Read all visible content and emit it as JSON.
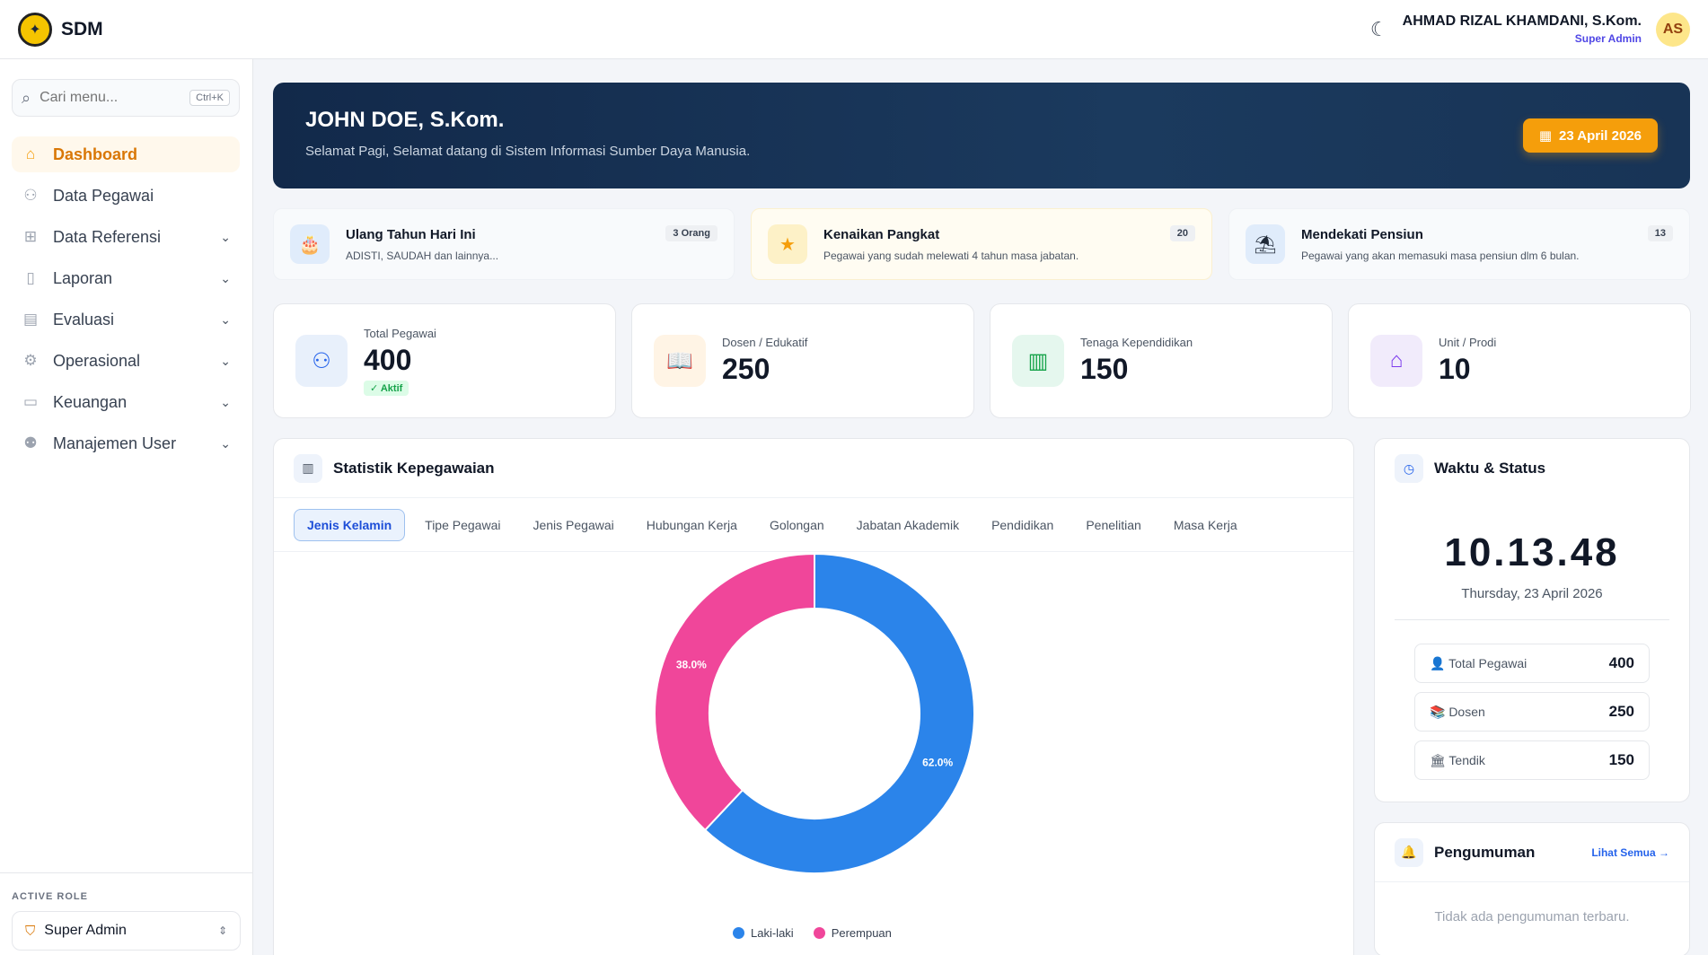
{
  "header": {
    "app_name": "SDM",
    "user_name": "AHMAD RIZAL KHAMDANI, S.Kom.",
    "user_role": "Super Admin",
    "avatar_initials": "AS",
    "theme_icon": "moon-icon"
  },
  "sidebar": {
    "search_placeholder": "Cari menu...",
    "search_shortcut": "Ctrl+K",
    "items": [
      {
        "label": "Dashboard",
        "icon": "home-icon",
        "active": true
      },
      {
        "label": "Data Pegawai",
        "icon": "users-icon"
      },
      {
        "label": "Data Referensi",
        "icon": "grid-icon",
        "expandable": true
      },
      {
        "label": "Laporan",
        "icon": "document-icon",
        "expandable": true
      },
      {
        "label": "Evaluasi",
        "icon": "clipboard-icon",
        "expandable": true
      },
      {
        "label": "Operasional",
        "icon": "gear-icon",
        "expandable": true
      },
      {
        "label": "Keuangan",
        "icon": "money-icon",
        "expandable": true
      },
      {
        "label": "Manajemen User",
        "icon": "user-group-icon",
        "expandable": true
      }
    ],
    "role_label": "ACTIVE ROLE",
    "role_value": "Super Admin"
  },
  "hero": {
    "title": "JOHN DOE, S.Kom.",
    "subtitle": "Selamat Pagi, Selamat datang di Sistem Informasi Sumber Daya Manusia.",
    "date": "23 April 2026"
  },
  "notices": [
    {
      "title": "Ulang Tahun Hari Ini",
      "desc": "ADISTI, SAUDAH dan lainnya...",
      "badge": "3 Orang",
      "icon": "cake-icon"
    },
    {
      "title": "Kenaikan Pangkat",
      "desc": "Pegawai yang sudah melewati 4 tahun masa jabatan.",
      "badge": "20",
      "icon": "star-icon"
    },
    {
      "title": "Mendekati Pensiun",
      "desc": "Pegawai yang akan memasuki masa pensiun dlm 6 bulan.",
      "badge": "13",
      "icon": "beach-umbrella-icon"
    }
  ],
  "stats": [
    {
      "label": "Total Pegawai",
      "value": "400",
      "badge": "✓ Aktif",
      "icon": "users-icon"
    },
    {
      "label": "Dosen / Edukatif",
      "value": "250",
      "icon": "book-icon"
    },
    {
      "label": "Tenaga Kependidikan",
      "value": "150",
      "icon": "building-icon"
    },
    {
      "label": "Unit / Prodi",
      "value": "10",
      "icon": "house-icon"
    }
  ],
  "statistik": {
    "title": "Statistik Kepegawaian",
    "tabs": [
      "Jenis Kelamin",
      "Tipe Pegawai",
      "Jenis Pegawai",
      "Hubungan Kerja",
      "Golongan",
      "Jabatan Akademik",
      "Pendidikan",
      "Penelitian",
      "Masa Kerja"
    ],
    "active_tab": 0
  },
  "chart_data": {
    "type": "pie",
    "categories": [
      "Laki-laki",
      "Perempuan"
    ],
    "values": [
      62.0,
      38.0
    ],
    "labels": [
      "62.0%",
      "38.0%"
    ],
    "colors": [
      "#2b84ea",
      "#f0469a"
    ],
    "legend": "bottom"
  },
  "waktu": {
    "title": "Waktu & Status",
    "time": "10.13.48",
    "date": "Thursday, 23 April 2026",
    "rows": [
      {
        "label": "👤 Total Pegawai",
        "value": "400"
      },
      {
        "label": "📚 Dosen",
        "value": "250"
      },
      {
        "label": "🏛 Tendik",
        "value": "150"
      }
    ]
  },
  "pengumuman": {
    "title": "Pengumuman",
    "see_all": "Lihat Semua →",
    "empty": "Tidak ada pengumuman terbaru."
  }
}
